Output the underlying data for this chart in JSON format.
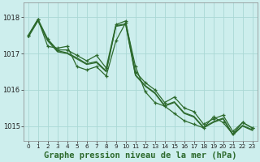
{
  "title": "Graphe pression niveau de la mer (hPa)",
  "bg_color": "#cdeeed",
  "grid_color": "#aad8d5",
  "line_color": "#2d6a2d",
  "xlim": [
    -0.5,
    23.5
  ],
  "ylim": [
    1014.6,
    1018.4
  ],
  "yticks": [
    1015,
    1016,
    1017,
    1018
  ],
  "xticks": [
    0,
    1,
    2,
    3,
    4,
    5,
    6,
    7,
    8,
    9,
    10,
    11,
    12,
    13,
    14,
    15,
    16,
    17,
    18,
    19,
    20,
    21,
    22,
    23
  ],
  "s1_x": [
    0,
    1,
    2,
    3,
    4,
    5,
    6,
    7,
    8,
    9,
    10,
    11,
    12,
    13,
    14,
    15,
    16,
    17,
    18,
    19,
    20,
    21,
    22,
    23
  ],
  "s1_y": [
    1017.5,
    1017.95,
    1017.4,
    1017.1,
    1017.1,
    1016.95,
    1016.8,
    1016.95,
    1016.6,
    1017.8,
    1017.9,
    1016.5,
    1016.2,
    1016.0,
    1015.65,
    1015.8,
    1015.5,
    1015.4,
    1015.05,
    1015.2,
    1015.3,
    1014.85,
    1015.1,
    1014.95
  ],
  "s2_x": [
    0,
    1,
    2,
    3,
    4,
    5,
    6,
    7,
    8,
    9,
    10,
    11,
    12,
    13,
    14,
    15,
    16,
    17,
    18,
    19,
    20,
    21,
    22,
    23
  ],
  "s2_y": [
    1017.45,
    1017.9,
    1017.35,
    1017.05,
    1017.0,
    1016.85,
    1016.7,
    1016.75,
    1016.5,
    1017.75,
    1017.8,
    1016.4,
    1016.1,
    1015.9,
    1015.55,
    1015.65,
    1015.35,
    1015.25,
    1014.95,
    1015.1,
    1015.2,
    1014.75,
    1015.0,
    1014.88
  ],
  "s3_x": [
    0,
    1,
    2,
    3,
    4,
    5,
    6,
    7,
    8,
    9,
    10,
    11,
    12,
    13,
    14,
    15,
    16,
    17,
    18,
    19,
    20,
    21,
    22,
    23
  ],
  "s3_y": [
    1017.48,
    1017.92,
    1017.38,
    1017.08,
    1017.02,
    1016.88,
    1016.72,
    1016.78,
    1016.52,
    1017.77,
    1017.82,
    1016.42,
    1016.12,
    1015.92,
    1015.57,
    1015.67,
    1015.37,
    1015.27,
    1014.97,
    1015.12,
    1015.22,
    1014.77,
    1015.02,
    1014.9
  ],
  "s4_x": [
    0,
    1,
    2,
    3,
    4,
    5,
    6,
    7,
    8,
    9,
    10,
    11,
    12,
    13,
    14,
    15,
    16,
    17,
    18,
    19,
    20,
    21,
    22,
    23
  ],
  "s4_y": [
    1017.5,
    1017.95,
    1017.2,
    1017.15,
    1017.2,
    1016.64,
    1016.55,
    1016.64,
    1016.38,
    1017.35,
    1017.85,
    1016.65,
    1015.95,
    1015.65,
    1015.55,
    1015.35,
    1015.15,
    1015.05,
    1014.95,
    1015.25,
    1015.1,
    1014.78,
    1015.1,
    1014.95
  ],
  "title_fontsize": 7.5,
  "tick_fontsize": 6,
  "xlabel_color": "#2d6a2d",
  "spine_color": "#888888"
}
